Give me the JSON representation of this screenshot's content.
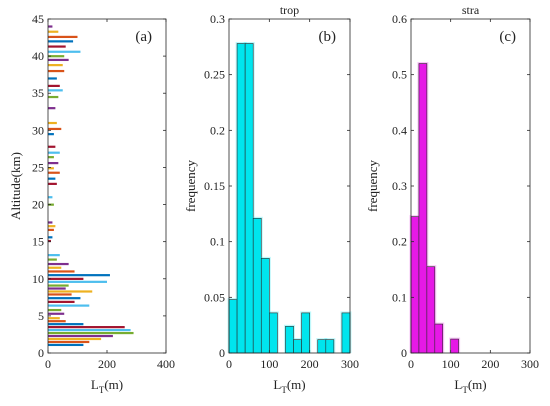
{
  "chart_data": [
    {
      "type": "bar",
      "orientation": "horizontal",
      "panel_label": "(a)",
      "title": "",
      "ylabel": "Altitude(km)",
      "xlabel_main": "L",
      "xlabel_sub": "T",
      "xlabel_unit": "(m)",
      "xlim": [
        0,
        400
      ],
      "ylim": [
        0,
        45
      ],
      "xticks": [
        0,
        200,
        400
      ],
      "yticks": [
        0,
        5,
        10,
        15,
        20,
        25,
        30,
        35,
        40,
        45
      ],
      "grid": false,
      "palette": [
        "#0072bd",
        "#d95319",
        "#edb120",
        "#7e2f8e",
        "#77ac30",
        "#4dbeee",
        "#a2142f"
      ],
      "bars": [
        {
          "alt": 1.1,
          "value": 120
        },
        {
          "alt": 1.5,
          "value": 140
        },
        {
          "alt": 1.9,
          "value": 180
        },
        {
          "alt": 2.3,
          "value": 220
        },
        {
          "alt": 2.7,
          "value": 290
        },
        {
          "alt": 3.1,
          "value": 280
        },
        {
          "alt": 3.5,
          "value": 260
        },
        {
          "alt": 3.9,
          "value": 120
        },
        {
          "alt": 4.3,
          "value": 60
        },
        {
          "alt": 4.7,
          "value": 40
        },
        {
          "alt": 5.3,
          "value": 55
        },
        {
          "alt": 5.8,
          "value": 45
        },
        {
          "alt": 6.4,
          "value": 140
        },
        {
          "alt": 6.9,
          "value": 90
        },
        {
          "alt": 7.4,
          "value": 110
        },
        {
          "alt": 7.9,
          "value": 80
        },
        {
          "alt": 8.3,
          "value": 150
        },
        {
          "alt": 8.7,
          "value": 60
        },
        {
          "alt": 9.1,
          "value": 70
        },
        {
          "alt": 9.6,
          "value": 200
        },
        {
          "alt": 10.0,
          "value": 120
        },
        {
          "alt": 10.5,
          "value": 210
        },
        {
          "alt": 11.0,
          "value": 90
        },
        {
          "alt": 11.5,
          "value": 45
        },
        {
          "alt": 12.0,
          "value": 70
        },
        {
          "alt": 12.6,
          "value": 30
        },
        {
          "alt": 13.2,
          "value": 40
        },
        {
          "alt": 15.1,
          "value": 10
        },
        {
          "alt": 15.6,
          "value": 15
        },
        {
          "alt": 16.6,
          "value": 20
        },
        {
          "alt": 17.1,
          "value": 25
        },
        {
          "alt": 17.6,
          "value": 15
        },
        {
          "alt": 20.0,
          "value": 20
        },
        {
          "alt": 21.0,
          "value": 15
        },
        {
          "alt": 22.8,
          "value": 30
        },
        {
          "alt": 23.5,
          "value": 25
        },
        {
          "alt": 24.3,
          "value": 40
        },
        {
          "alt": 24.9,
          "value": 20
        },
        {
          "alt": 25.6,
          "value": 35
        },
        {
          "alt": 26.4,
          "value": 20
        },
        {
          "alt": 27.0,
          "value": 40
        },
        {
          "alt": 27.8,
          "value": 25
        },
        {
          "alt": 29.5,
          "value": 20
        },
        {
          "alt": 30.2,
          "value": 45
        },
        {
          "alt": 31.0,
          "value": 30
        },
        {
          "alt": 33.0,
          "value": 25
        },
        {
          "alt": 34.5,
          "value": 35
        },
        {
          "alt": 35.4,
          "value": 50
        },
        {
          "alt": 36.0,
          "value": 40
        },
        {
          "alt": 37.0,
          "value": 30
        },
        {
          "alt": 38.0,
          "value": 55
        },
        {
          "alt": 38.8,
          "value": 50
        },
        {
          "alt": 39.5,
          "value": 70
        },
        {
          "alt": 40.0,
          "value": 55
        },
        {
          "alt": 40.6,
          "value": 110
        },
        {
          "alt": 41.3,
          "value": 60
        },
        {
          "alt": 42.0,
          "value": 85
        },
        {
          "alt": 42.6,
          "value": 100
        },
        {
          "alt": 43.3,
          "value": 35
        },
        {
          "alt": 44.0,
          "value": 15
        }
      ]
    },
    {
      "type": "bar",
      "panel_label": "(b)",
      "title": "trop",
      "ylabel": "frequency",
      "xlabel_main": "L",
      "xlabel_sub": "T",
      "xlabel_unit": "(m)",
      "xlim": [
        0,
        300
      ],
      "ylim": [
        0,
        0.3
      ],
      "xticks": [
        0,
        100,
        200,
        300
      ],
      "yticks": [
        0,
        0.05,
        0.1,
        0.15,
        0.2,
        0.25,
        0.3
      ],
      "ytick_labels": [
        "0",
        "0.05",
        "0.1",
        "0.15",
        "0.2",
        "0.25",
        "0.3"
      ],
      "color": "#00e5ee",
      "grid": false,
      "bins": [
        {
          "x0": 0,
          "x1": 20,
          "value": 0.048
        },
        {
          "x0": 20,
          "x1": 40,
          "value": 0.278
        },
        {
          "x0": 40,
          "x1": 60,
          "value": 0.278
        },
        {
          "x0": 60,
          "x1": 80,
          "value": 0.121
        },
        {
          "x0": 80,
          "x1": 100,
          "value": 0.085
        },
        {
          "x0": 100,
          "x1": 120,
          "value": 0.036
        },
        {
          "x0": 120,
          "x1": 140,
          "value": 0
        },
        {
          "x0": 140,
          "x1": 160,
          "value": 0.024
        },
        {
          "x0": 160,
          "x1": 180,
          "value": 0.012
        },
        {
          "x0": 180,
          "x1": 200,
          "value": 0.036
        },
        {
          "x0": 200,
          "x1": 220,
          "value": 0
        },
        {
          "x0": 220,
          "x1": 240,
          "value": 0.012
        },
        {
          "x0": 240,
          "x1": 260,
          "value": 0.012
        },
        {
          "x0": 260,
          "x1": 280,
          "value": 0
        },
        {
          "x0": 280,
          "x1": 300,
          "value": 0.036
        }
      ]
    },
    {
      "type": "bar",
      "panel_label": "(c)",
      "title": "stra",
      "ylabel": "frequency",
      "xlabel_main": "L",
      "xlabel_sub": "T",
      "xlabel_unit": "(m)",
      "xlim": [
        0,
        300
      ],
      "ylim": [
        0,
        0.6
      ],
      "xticks": [
        0,
        100,
        200,
        300
      ],
      "yticks": [
        0,
        0.1,
        0.2,
        0.3,
        0.4,
        0.5,
        0.6
      ],
      "ytick_labels": [
        "0",
        "0.1",
        "0.2",
        "0.3",
        "0.4",
        "0.5",
        "0.6"
      ],
      "color": "#e619e6",
      "grid": false,
      "bins": [
        {
          "x0": 0,
          "x1": 20,
          "value": 0.245
        },
        {
          "x0": 20,
          "x1": 40,
          "value": 0.52
        },
        {
          "x0": 40,
          "x1": 60,
          "value": 0.155
        },
        {
          "x0": 60,
          "x1": 80,
          "value": 0.052
        },
        {
          "x0": 80,
          "x1": 100,
          "value": 0
        },
        {
          "x0": 100,
          "x1": 120,
          "value": 0.025
        }
      ]
    }
  ]
}
